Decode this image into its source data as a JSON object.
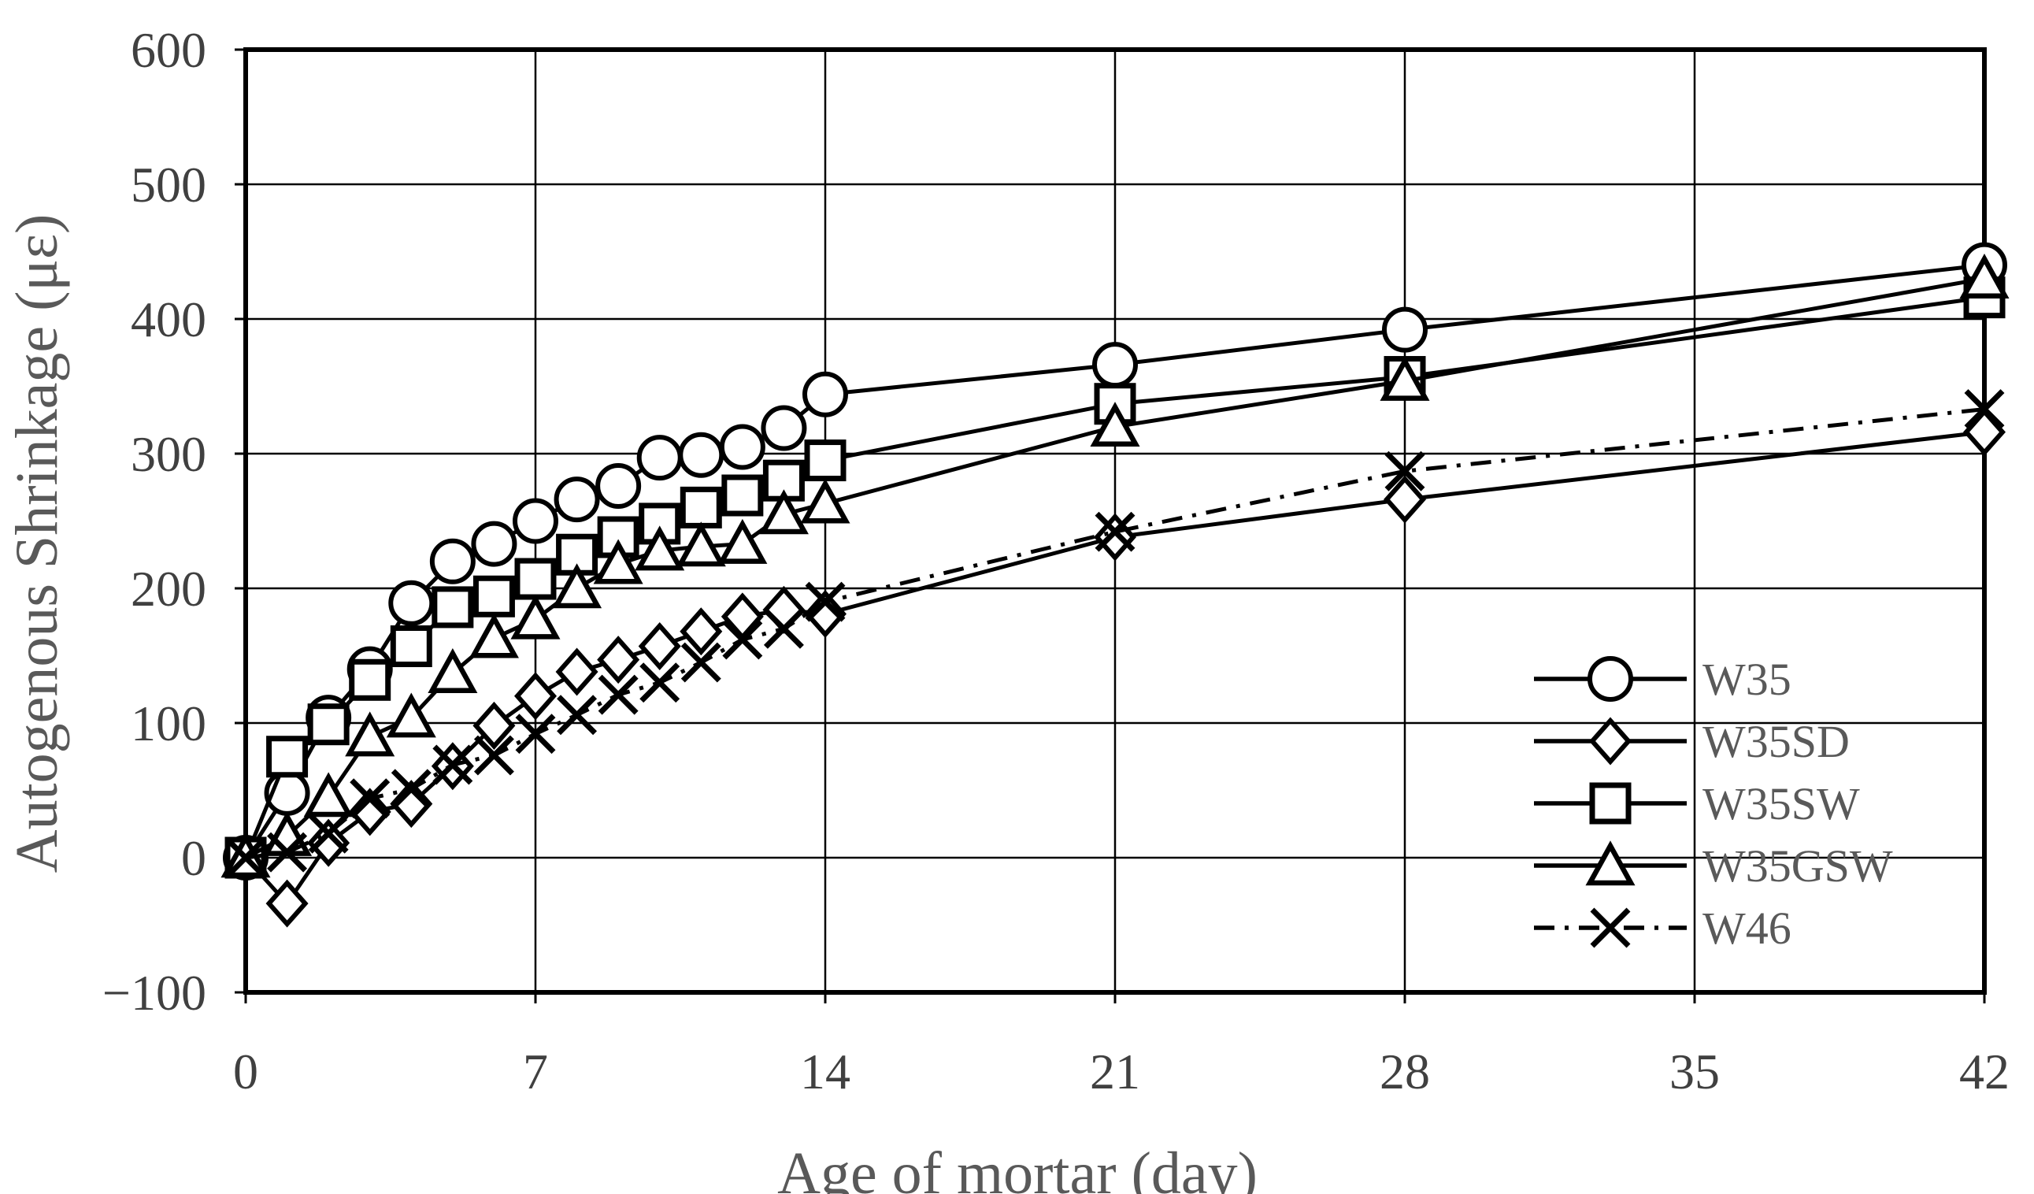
{
  "chart_data": {
    "type": "line",
    "title": "",
    "xlabel": "Age of mortar (day)",
    "ylabel": "Autogenous Shrinkage (με)",
    "xlim": [
      0,
      42
    ],
    "ylim": [
      -100,
      600
    ],
    "xticks": [
      0,
      7,
      14,
      21,
      28,
      35,
      42
    ],
    "yticks": [
      600,
      500,
      400,
      300,
      200,
      100,
      0,
      -100
    ],
    "grid": true,
    "legend_position": "inside-right-bottom",
    "x_days": [
      0,
      1,
      2,
      3,
      4,
      5,
      6,
      7,
      8,
      9,
      10,
      11,
      12,
      13,
      14,
      21,
      28,
      42
    ],
    "series": [
      {
        "name": "W35",
        "marker": "circle",
        "line": "solid",
        "values": [
          0,
          48,
          104,
          140,
          189,
          220,
          233,
          250,
          266,
          276,
          297,
          299,
          305,
          319,
          344,
          366,
          392,
          440
        ]
      },
      {
        "name": "W35SD",
        "marker": "diamond",
        "line": "solid",
        "values": [
          0,
          -34,
          11,
          34,
          40,
          68,
          98,
          120,
          138,
          147,
          157,
          168,
          179,
          184,
          181,
          238,
          266,
          316
        ]
      },
      {
        "name": "W35SW",
        "marker": "square",
        "line": "solid",
        "values": [
          0,
          75,
          99,
          132,
          157,
          186,
          194,
          207,
          225,
          238,
          248,
          260,
          269,
          280,
          295,
          337,
          357,
          416
        ]
      },
      {
        "name": "W35GSW",
        "marker": "triangle",
        "line": "solid",
        "values": [
          0,
          16,
          45,
          90,
          104,
          137,
          163,
          177,
          200,
          218,
          228,
          231,
          233,
          255,
          263,
          320,
          354,
          430
        ]
      },
      {
        "name": "W46",
        "marker": "x",
        "line": "dashdot",
        "values": [
          0,
          4,
          18,
          44,
          51,
          69,
          76,
          92,
          106,
          121,
          130,
          145,
          162,
          170,
          190,
          242,
          287,
          333
        ]
      }
    ],
    "legend": [
      "W35",
      "W35SD",
      "W35SW",
      "W35GSW",
      "W46"
    ]
  },
  "colors": {
    "series_stroke": "#000000",
    "grid": "#000000",
    "border": "#000000",
    "tick_label": "#404040",
    "axis_title": "#595959",
    "legend_text": "#595959",
    "background": "#ffffff"
  }
}
